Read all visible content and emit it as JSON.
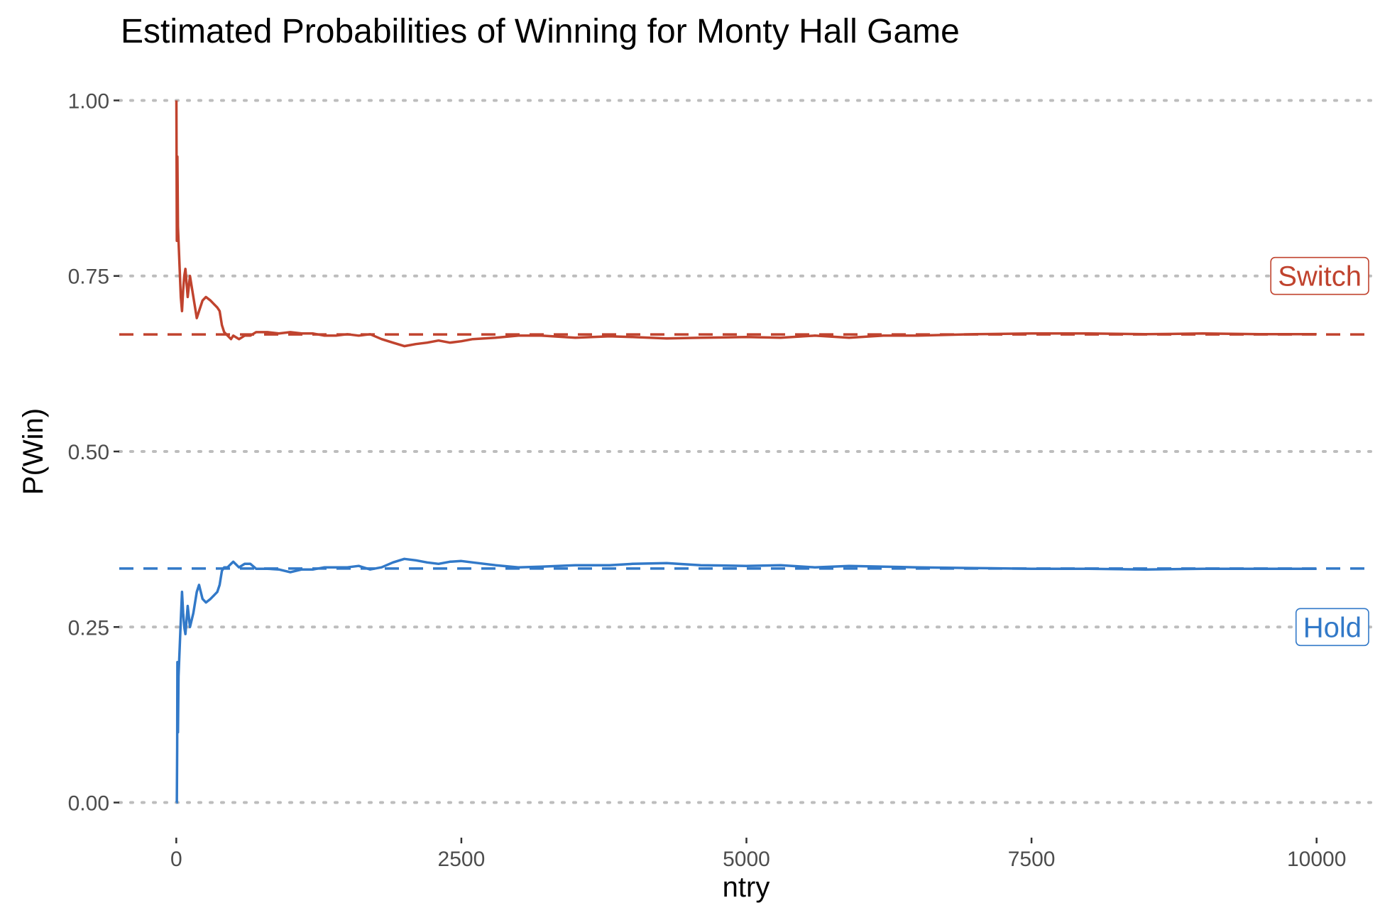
{
  "chart_data": {
    "type": "line",
    "title": "Estimated Probabilities of Winning for Monty Hall Game",
    "xlabel": "ntry",
    "ylabel": "P(Win)",
    "xlim": [
      -500,
      10500
    ],
    "ylim": [
      -0.05,
      1.05
    ],
    "x_ticks": [
      0,
      2500,
      5000,
      7500,
      10000
    ],
    "x_tick_labels": [
      "0",
      "2500",
      "5000",
      "7500",
      "10000"
    ],
    "y_ticks": [
      0,
      0.25,
      0.5,
      0.75,
      1.0
    ],
    "y_tick_labels": [
      "0.00",
      "0.25",
      "0.50",
      "0.75",
      "1.00"
    ],
    "grid": "horizontal dotted",
    "series": [
      {
        "name": "Switch",
        "color": "#c0432e",
        "reference": 0.6667,
        "x": [
          1,
          5,
          10,
          15,
          20,
          30,
          40,
          50,
          60,
          70,
          80,
          100,
          120,
          150,
          180,
          200,
          230,
          260,
          300,
          330,
          360,
          380,
          400,
          420,
          450,
          480,
          500,
          550,
          600,
          650,
          700,
          800,
          900,
          1000,
          1100,
          1200,
          1300,
          1400,
          1500,
          1600,
          1700,
          1800,
          1900,
          2000,
          2100,
          2200,
          2300,
          2400,
          2500,
          2600,
          2800,
          3000,
          3200,
          3500,
          3800,
          4000,
          4300,
          4600,
          5000,
          5300,
          5600,
          5900,
          6200,
          6500,
          7000,
          7500,
          8000,
          8500,
          9000,
          9500,
          10000
        ],
        "values": [
          1.0,
          0.8,
          0.92,
          0.82,
          0.8,
          0.76,
          0.72,
          0.7,
          0.73,
          0.75,
          0.76,
          0.72,
          0.75,
          0.72,
          0.69,
          0.7,
          0.715,
          0.72,
          0.715,
          0.71,
          0.705,
          0.7,
          0.68,
          0.67,
          0.665,
          0.66,
          0.665,
          0.66,
          0.665,
          0.665,
          0.67,
          0.67,
          0.668,
          0.67,
          0.668,
          0.668,
          0.665,
          0.665,
          0.667,
          0.665,
          0.667,
          0.66,
          0.655,
          0.65,
          0.653,
          0.655,
          0.658,
          0.655,
          0.657,
          0.66,
          0.662,
          0.665,
          0.665,
          0.662,
          0.664,
          0.663,
          0.661,
          0.662,
          0.663,
          0.662,
          0.665,
          0.662,
          0.665,
          0.665,
          0.667,
          0.668,
          0.668,
          0.667,
          0.668,
          0.667,
          0.667
        ]
      },
      {
        "name": "Hold",
        "color": "#3279c8",
        "reference": 0.3333,
        "x": [
          1,
          5,
          8,
          10,
          15,
          20,
          30,
          40,
          50,
          60,
          70,
          80,
          100,
          120,
          150,
          180,
          200,
          230,
          260,
          300,
          330,
          360,
          380,
          400,
          420,
          450,
          480,
          500,
          550,
          600,
          650,
          700,
          800,
          900,
          1000,
          1100,
          1200,
          1300,
          1400,
          1500,
          1600,
          1700,
          1800,
          1900,
          2000,
          2100,
          2200,
          2300,
          2400,
          2500,
          2600,
          2800,
          3000,
          3200,
          3500,
          3800,
          4000,
          4300,
          4600,
          5000,
          5300,
          5600,
          5900,
          6200,
          6500,
          7000,
          7500,
          8000,
          8500,
          9000,
          9500,
          10000
        ],
        "values": [
          0.0,
          0.0,
          0.08,
          0.2,
          0.1,
          0.18,
          0.22,
          0.26,
          0.3,
          0.27,
          0.25,
          0.24,
          0.28,
          0.25,
          0.27,
          0.3,
          0.31,
          0.29,
          0.285,
          0.29,
          0.295,
          0.3,
          0.31,
          0.33,
          0.335,
          0.335,
          0.34,
          0.343,
          0.335,
          0.34,
          0.34,
          0.333,
          0.333,
          0.332,
          0.328,
          0.332,
          0.332,
          0.335,
          0.335,
          0.335,
          0.337,
          0.332,
          0.335,
          0.342,
          0.347,
          0.345,
          0.342,
          0.34,
          0.343,
          0.344,
          0.342,
          0.338,
          0.335,
          0.336,
          0.338,
          0.338,
          0.34,
          0.341,
          0.338,
          0.337,
          0.338,
          0.335,
          0.337,
          0.336,
          0.335,
          0.334,
          0.333,
          0.333,
          0.332,
          0.333,
          0.333,
          0.333
        ]
      }
    ]
  }
}
